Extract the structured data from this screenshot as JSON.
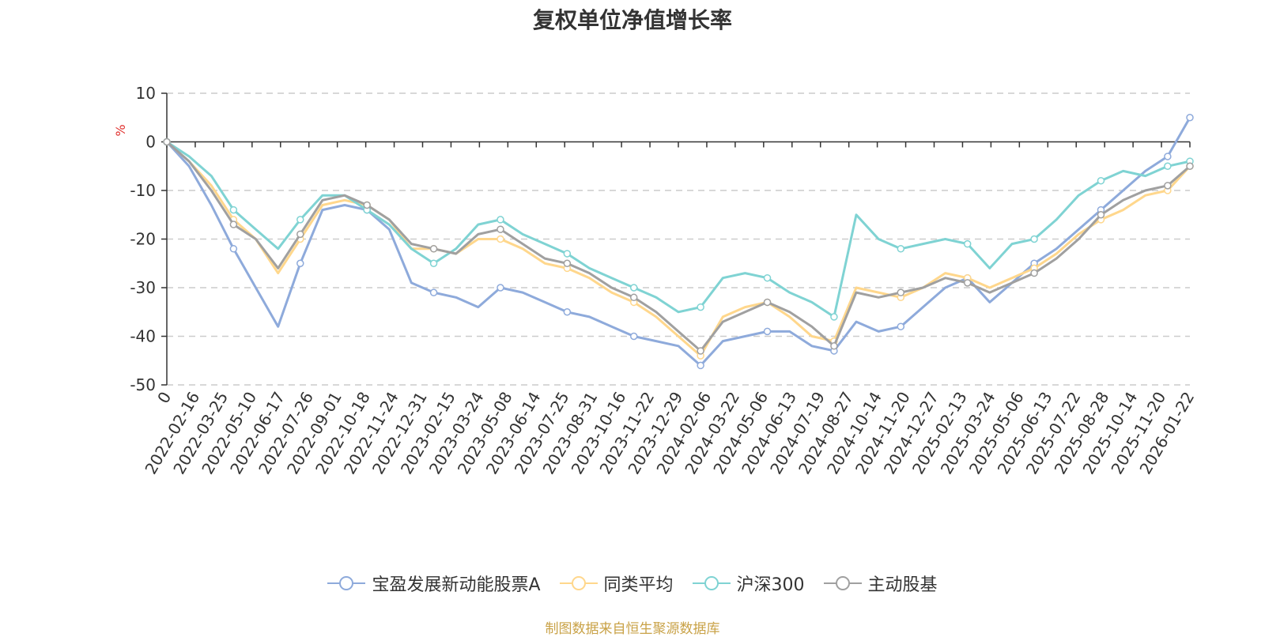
{
  "chart_data": {
    "type": "line",
    "title": "复权单位净值增长率",
    "ylabel": "%",
    "ylim": [
      -50,
      10
    ],
    "yticks": [
      10,
      0,
      -10,
      -20,
      -30,
      -40,
      -50
    ],
    "xtick_labels": [
      "0",
      "2022-02-16",
      "2022-03-25",
      "2022-05-10",
      "2022-06-17",
      "2022-07-26",
      "2022-09-01",
      "2022-10-18",
      "2022-11-24",
      "2022-12-31",
      "2023-02-15",
      "2023-03-24",
      "2023-05-08",
      "2023-06-14",
      "2023-07-25",
      "2023-08-31",
      "2023-10-16",
      "2023-11-22",
      "2023-12-29",
      "2024-02-06",
      "2024-03-22",
      "2024-05-06",
      "2024-06-13",
      "2024-07-19",
      "2024-08-27",
      "2024-10-14",
      "2024-11-20",
      "2024-12-27",
      "2025-02-13",
      "2025-03-24",
      "2025-05-06",
      "2025-06-13",
      "2025-07-22",
      "2025-08-28",
      "2025-10-14",
      "2025-11-20",
      "2026-01-22"
    ],
    "series": [
      {
        "name": "宝盈发展新动能股票A",
        "color": "#8eaadb",
        "values": [
          0,
          -5,
          -13,
          -22,
          -30,
          -38,
          -25,
          -14,
          -13,
          -14,
          -18,
          -29,
          -31,
          -32,
          -34,
          -30,
          -31,
          -33,
          -35,
          -36,
          -38,
          -40,
          -41,
          -42,
          -46,
          -41,
          -40,
          -39,
          -39,
          -42,
          -43,
          -37,
          -39,
          -38,
          -34,
          -30,
          -28,
          -33,
          -29,
          -25,
          -22,
          -18,
          -14,
          -10,
          -6,
          -3,
          5
        ]
      },
      {
        "name": "同类平均",
        "color": "#ffd78c",
        "values": [
          0,
          -4,
          -9,
          -16,
          -20,
          -27,
          -20,
          -13,
          -12,
          -13,
          -16,
          -22,
          -22,
          -23,
          -20,
          -20,
          -22,
          -25,
          -26,
          -28,
          -31,
          -33,
          -36,
          -40,
          -44,
          -36,
          -34,
          -33,
          -36,
          -40,
          -41,
          -30,
          -31,
          -32,
          -30,
          -27,
          -28,
          -30,
          -28,
          -26,
          -23,
          -19,
          -16,
          -14,
          -11,
          -10,
          -5
        ]
      },
      {
        "name": "沪深300",
        "color": "#7fd3d3",
        "values": [
          0,
          -3,
          -7,
          -14,
          -18,
          -22,
          -16,
          -11,
          -11,
          -14,
          -17,
          -22,
          -25,
          -22,
          -17,
          -16,
          -19,
          -21,
          -23,
          -26,
          -28,
          -30,
          -32,
          -35,
          -34,
          -28,
          -27,
          -28,
          -31,
          -33,
          -36,
          -15,
          -20,
          -22,
          -21,
          -20,
          -21,
          -26,
          -21,
          -20,
          -16,
          -11,
          -8,
          -6,
          -7,
          -5,
          -4
        ]
      },
      {
        "name": "主动股基",
        "color": "#a0a0a0",
        "values": [
          0,
          -4,
          -10,
          -17,
          -20,
          -26,
          -19,
          -12,
          -11,
          -13,
          -16,
          -21,
          -22,
          -23,
          -19,
          -18,
          -21,
          -24,
          -25,
          -27,
          -30,
          -32,
          -35,
          -39,
          -43,
          -37,
          -35,
          -33,
          -35,
          -38,
          -42,
          -31,
          -32,
          -31,
          -30,
          -28,
          -29,
          -31,
          -29,
          -27,
          -24,
          -20,
          -15,
          -12,
          -10,
          -9,
          -5
        ]
      }
    ]
  },
  "source_text": "制图数据来自恒生聚源数据库"
}
